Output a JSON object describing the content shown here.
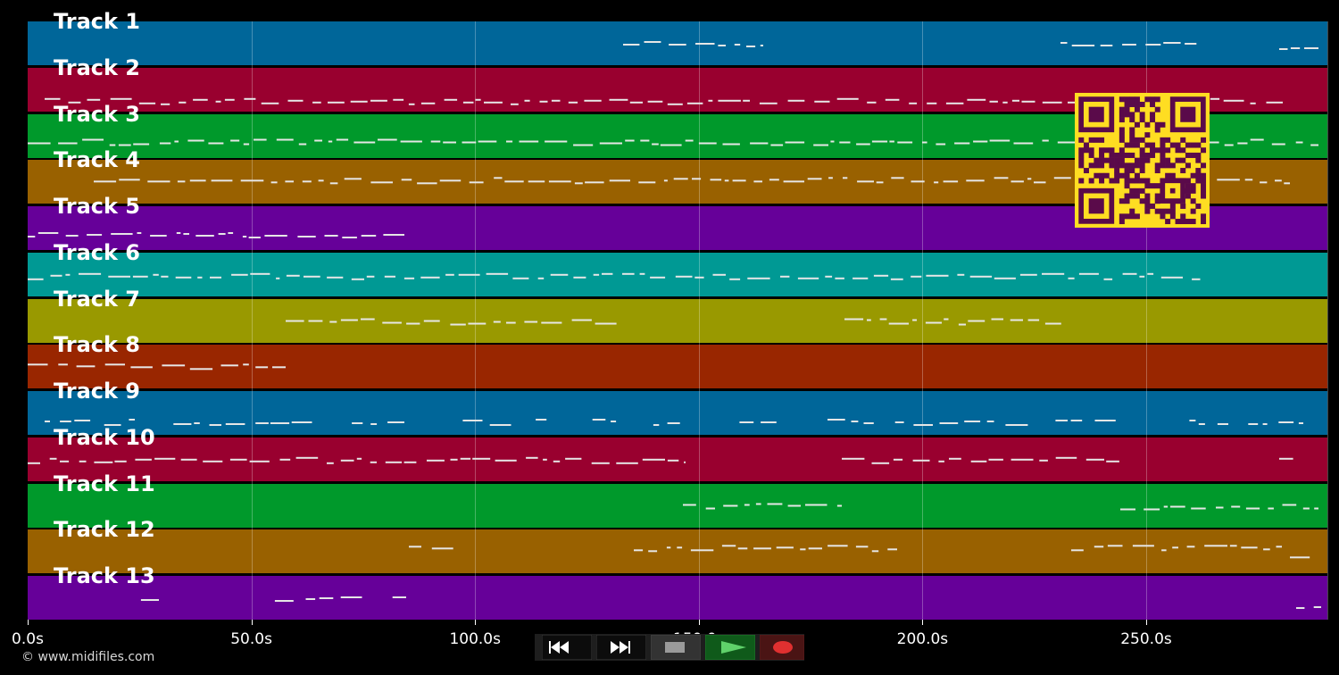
{
  "tracks": [
    {
      "name": "Track 1",
      "color": "#006699"
    },
    {
      "name": "Track 2",
      "color": "#99002f"
    },
    {
      "name": "Track 3",
      "color": "#00992b"
    },
    {
      "name": "Track 4",
      "color": "#996100"
    },
    {
      "name": "Track 5",
      "color": "#660099"
    },
    {
      "name": "Track 6",
      "color": "#009994"
    },
    {
      "name": "Track 7",
      "color": "#999900"
    },
    {
      "name": "Track 8",
      "color": "#992600"
    },
    {
      "name": "Track 9",
      "color": "#006699"
    },
    {
      "name": "Track 10",
      "color": "#99002f"
    },
    {
      "name": "Track 11",
      "color": "#00992b"
    },
    {
      "name": "Track 12",
      "color": "#996100"
    },
    {
      "name": "Track 13",
      "color": "#660099"
    }
  ],
  "timeline": {
    "duration_s": 290.5,
    "ticks": [
      {
        "t": 0,
        "label": "0.0s"
      },
      {
        "t": 50,
        "label": "50.0s"
      },
      {
        "t": 100,
        "label": "100.0s"
      },
      {
        "t": 150,
        "label": "150.0s"
      },
      {
        "t": 200,
        "label": "200.0s"
      },
      {
        "t": 250,
        "label": "250.0s"
      }
    ]
  },
  "transport": {
    "rewind": "rewind-icon",
    "fast_forward": "fast-forward-icon",
    "stop": "stop-icon",
    "play": "play-icon",
    "record": "record-icon"
  },
  "qr_code": "qr-code",
  "footer": {
    "copyright": "© www.midifiles.com"
  },
  "colors": {
    "background": "#000000",
    "note": "#e6e6e6",
    "qr_bg": "#ffdd22",
    "qr_fg": "#5a0a4a"
  }
}
